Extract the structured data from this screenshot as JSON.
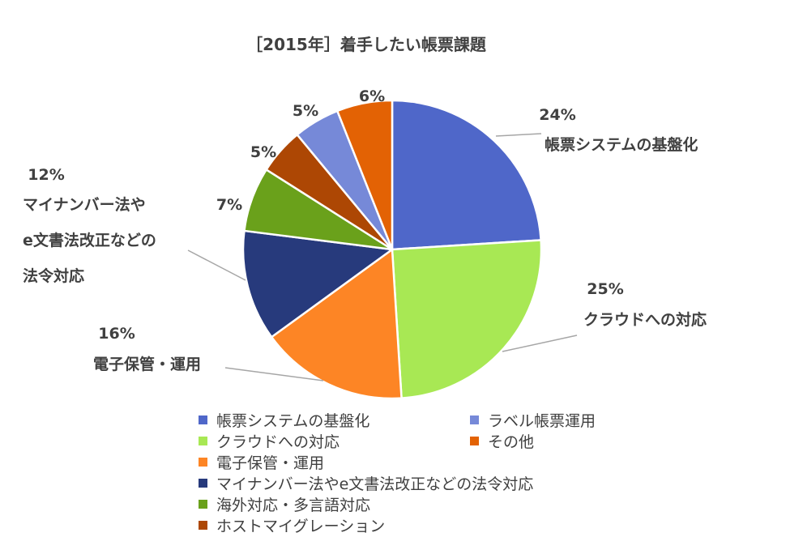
{
  "chart_data": {
    "type": "pie",
    "title": "［2015年］着手したい帳票課題",
    "slices": [
      {
        "name": "帳票システムの基盤化",
        "value": 24,
        "label": "24%",
        "color": "#4f67c9"
      },
      {
        "name": "クラウドへの対応",
        "value": 25,
        "label": "25%",
        "color": "#a8e854"
      },
      {
        "name": "電子保管・運用",
        "value": 16,
        "label": "16%",
        "color": "#fd8525"
      },
      {
        "name": "マイナンバー法やe文書法改正などの法令対応",
        "value": 12,
        "label": "12%",
        "color": "#273a7c"
      },
      {
        "name": "海外対応・多言語対応",
        "value": 7,
        "label": "7%",
        "color": "#6aa11b"
      },
      {
        "name": "ホストマイグレーション",
        "value": 5,
        "label": "5%",
        "color": "#ad4704"
      },
      {
        "name": "ラベル帳票運用",
        "value": 5,
        "label": "5%",
        "color": "#7689d8"
      },
      {
        "name": "その他",
        "value": 6,
        "label": "6%",
        "color": "#e36204"
      }
    ],
    "callout_names": {
      "0": [
        "帳票システムの基盤化"
      ],
      "1": [
        "クラウドへの対応"
      ],
      "2": [
        "電子保管・運用"
      ],
      "3": [
        "マイナンバー法や",
        "e文書法改正などの",
        "法令対応"
      ]
    },
    "legend": {
      "position": "bottom",
      "columns": [
        [
          0,
          1,
          2,
          3,
          4,
          5
        ],
        [
          6,
          7
        ]
      ]
    }
  }
}
